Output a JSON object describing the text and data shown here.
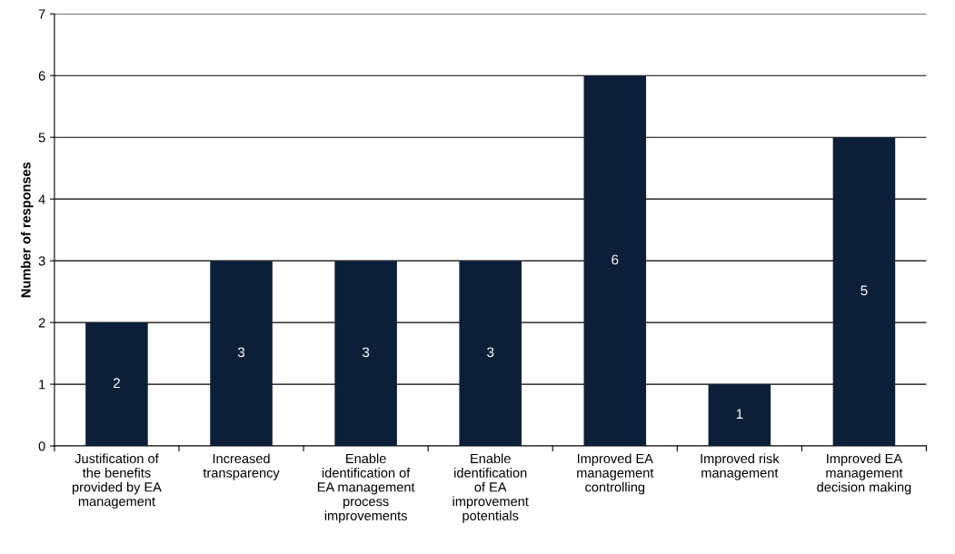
{
  "chart_data": {
    "type": "bar",
    "ylabel": "Number of responses",
    "categories": [
      "Justification of\nthe benefits\nprovided by EA\nmanagement",
      "Increased\ntransparency",
      "Enable\nidentification of\nEA management\nprocess\nimprovements",
      "Enable\nidentification\nof EA\nimprovement\npotentials",
      "Improved EA\nmanagement\ncontrolling",
      "Improved risk\nmanagement",
      "Improved EA\nmanagement\ndecision making"
    ],
    "values": [
      2,
      3,
      3,
      3,
      6,
      1,
      5
    ],
    "color": "#0d1e38",
    "ylim": [
      0,
      7
    ],
    "yticks": [
      0,
      1,
      2,
      3,
      4,
      5,
      6,
      7
    ],
    "grid": "y",
    "data_labels": true
  }
}
